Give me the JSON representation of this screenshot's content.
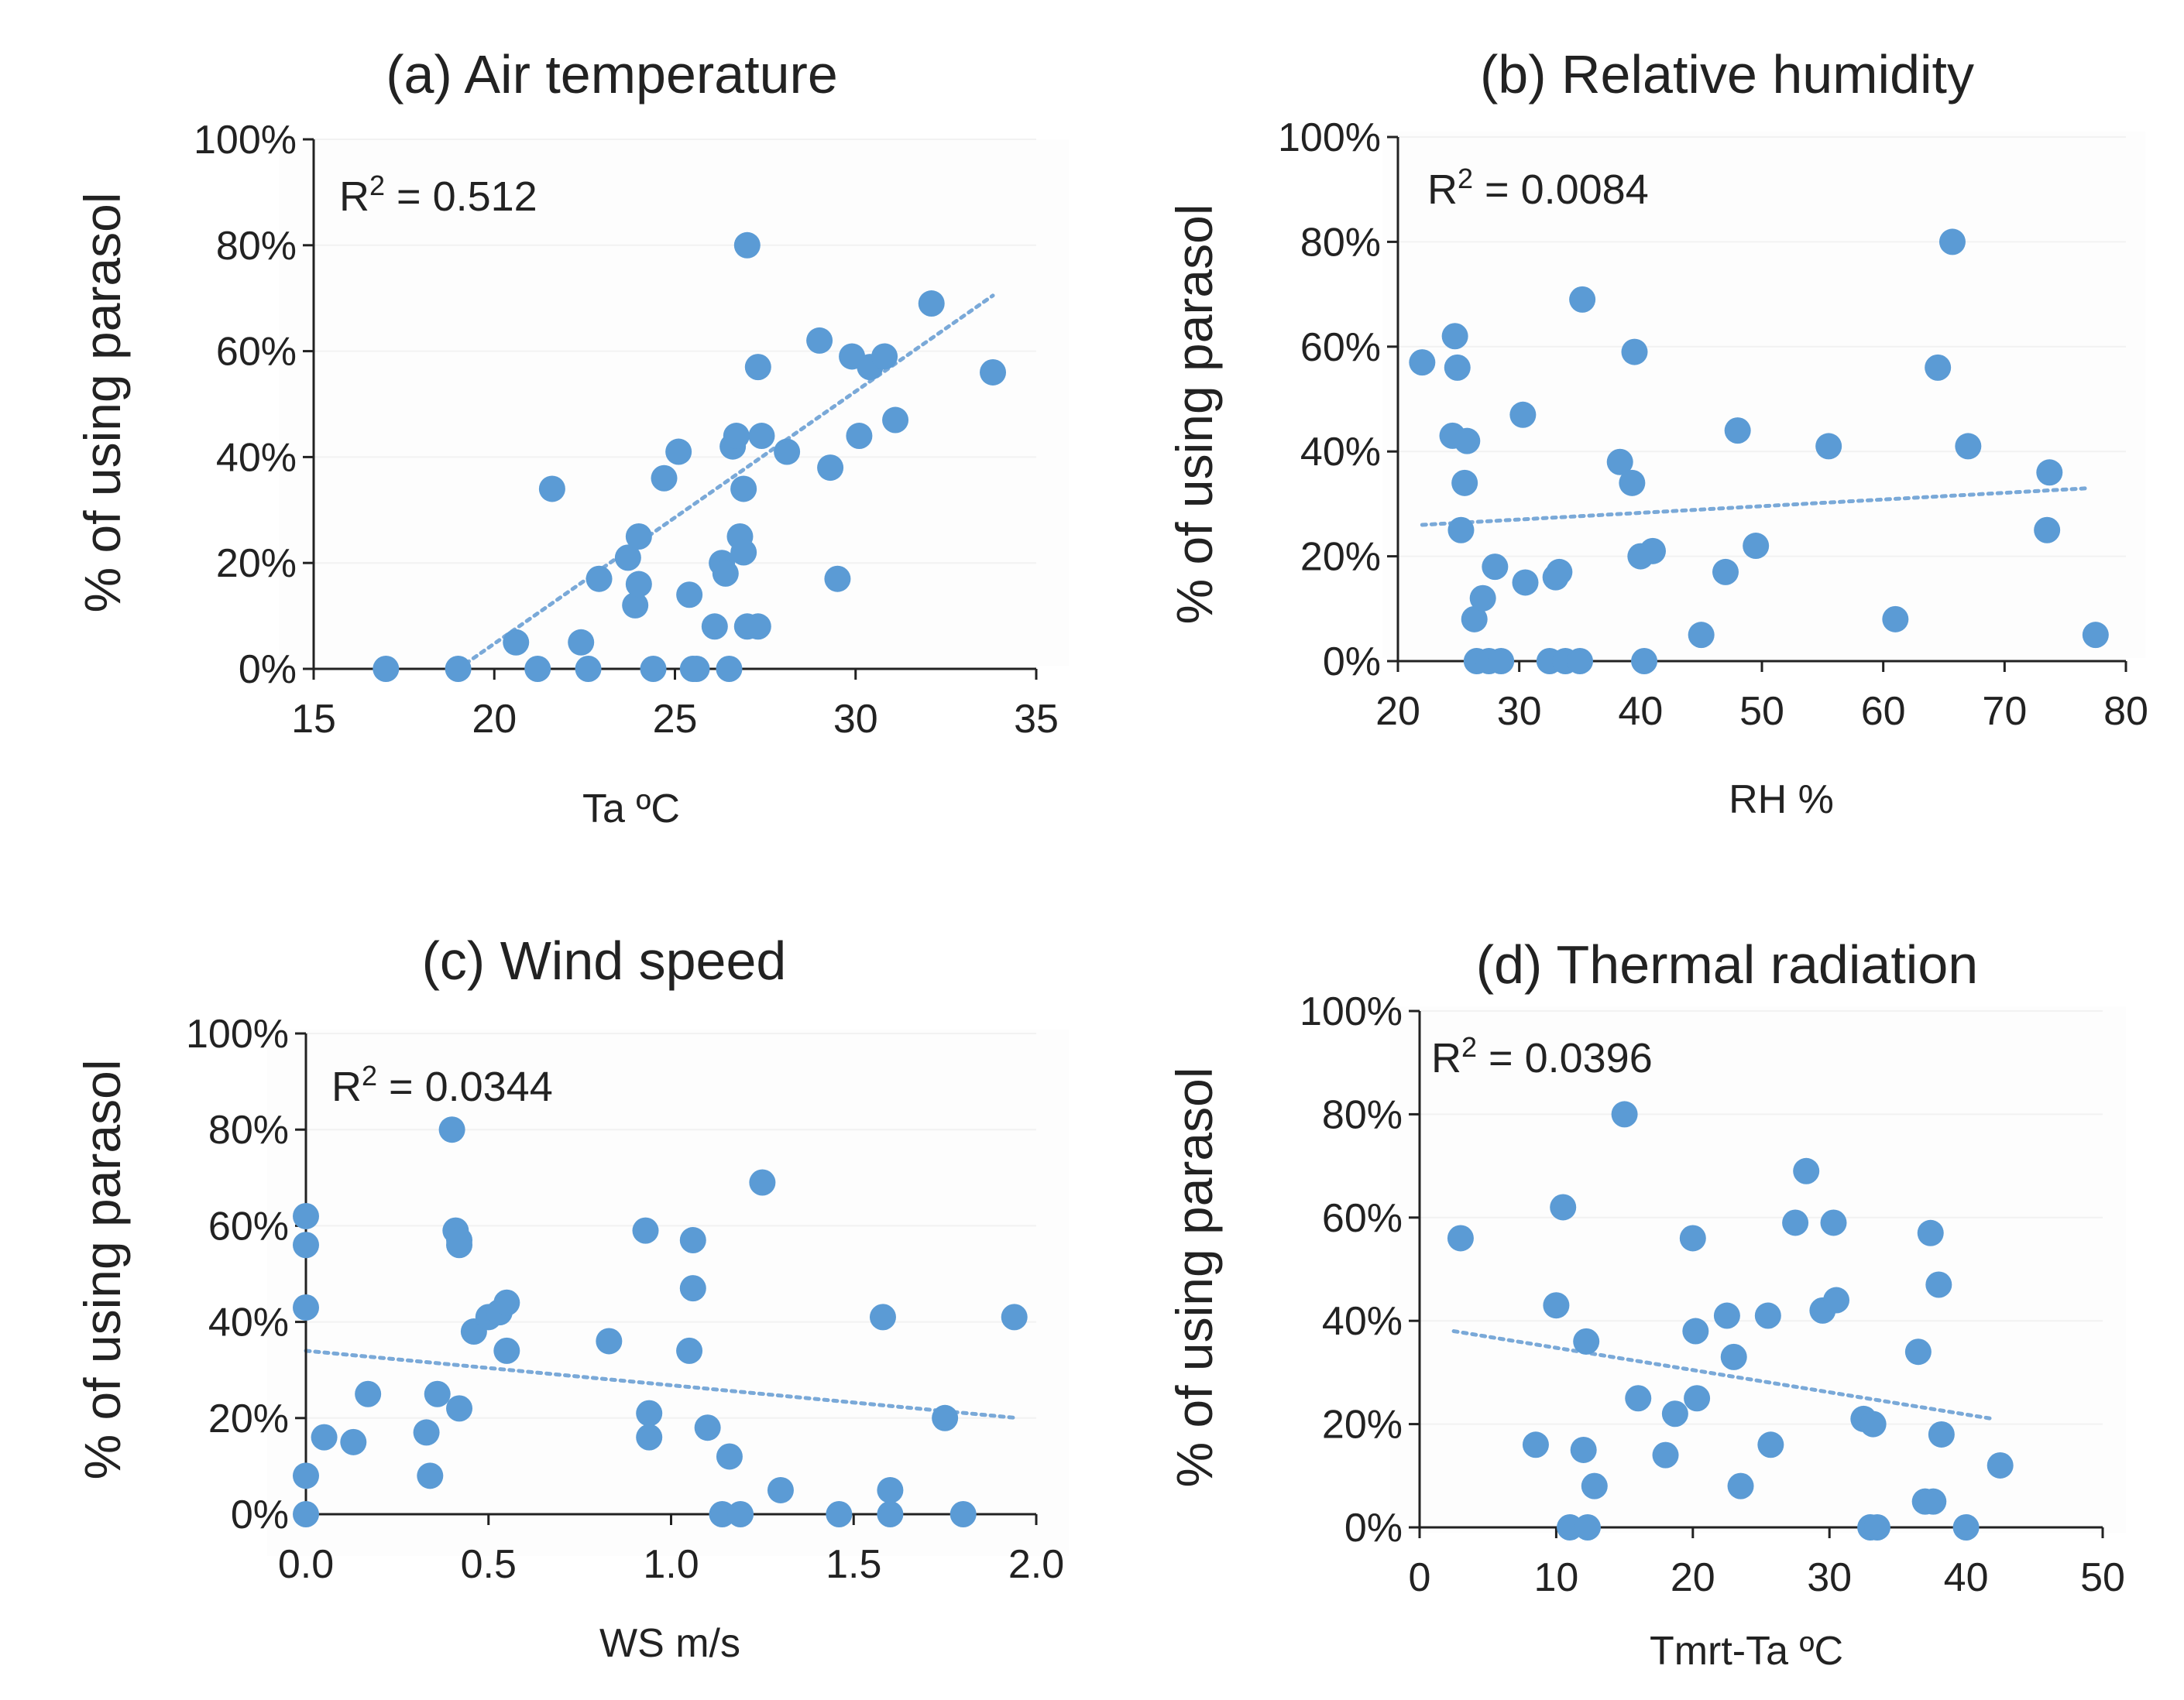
{
  "colors": {
    "point": "#5b9bd5",
    "trendline": "#7aa9d8",
    "axis": "#222222",
    "grid": "#f2f2f2"
  },
  "chart_data": [
    {
      "id": "a",
      "type": "scatter",
      "title": "(a) Air temperature",
      "xlabel": "Ta ºC",
      "ylabel": "% of using parasol",
      "xlim": [
        15,
        35
      ],
      "xticks": [
        "15",
        "20",
        "25",
        "30",
        "35"
      ],
      "ylim": [
        0,
        100
      ],
      "yticks": [
        "0%",
        "20%",
        "40%",
        "60%",
        "80%",
        "100%"
      ],
      "r2_prefix": "R",
      "r2_exp": "2",
      "r2_value": " = 0.512",
      "trendline": {
        "x": [
          19,
          33.8
        ],
        "y": [
          0,
          70.5
        ]
      },
      "points": {
        "x": [
          17,
          19,
          20.6,
          21.2,
          21.6,
          22.4,
          22.6,
          22.9,
          23.7,
          23.9,
          24,
          24,
          24.4,
          24.7,
          25.1,
          25.4,
          25.5,
          25.6,
          26.1,
          26.3,
          26.4,
          26.5,
          26.6,
          26.7,
          26.8,
          26.9,
          26.9,
          27,
          27,
          27.3,
          27.3,
          27.4,
          28.1,
          29,
          29.3,
          29.5,
          29.9,
          30.1,
          30.4,
          30.8,
          31.1,
          32.1,
          33.8
        ],
        "y": [
          0,
          0,
          5,
          0,
          34,
          5,
          0,
          17,
          21,
          12,
          25,
          16,
          0,
          36,
          41,
          14,
          0,
          0,
          8,
          20,
          18,
          0,
          42,
          44,
          25,
          22,
          34,
          8,
          80,
          57,
          8,
          44,
          41,
          62,
          38,
          17,
          59,
          44,
          57,
          59,
          47,
          69,
          56
        ]
      }
    },
    {
      "id": "b",
      "type": "scatter",
      "title": "(b) Relative humidity",
      "xlabel": "RH %",
      "ylabel": "% of using parasol",
      "xlim": [
        20,
        80
      ],
      "xticks": [
        "20",
        "30",
        "40",
        "50",
        "60",
        "70",
        "80"
      ],
      "ylim": [
        0,
        100
      ],
      "yticks": [
        "0%",
        "20%",
        "40%",
        "60%",
        "80%",
        "100%"
      ],
      "r2_prefix": "R",
      "r2_exp": "2",
      "r2_value": " = 0.0084",
      "trendline": {
        "x": [
          22,
          77
        ],
        "y": [
          26,
          33
        ]
      },
      "points": {
        "x": [
          22,
          24.5,
          24.7,
          24.9,
          25.2,
          25.5,
          25.7,
          26.3,
          26.5,
          27,
          27.5,
          28,
          28.5,
          30.3,
          30.5,
          32.5,
          33,
          33.3,
          33.8,
          35,
          35.2,
          38.3,
          39.3,
          39.5,
          40,
          40.3,
          41,
          45,
          47,
          48,
          49.5,
          55.5,
          61,
          64.5,
          65.7,
          67,
          73.5,
          73.7,
          77.5
        ],
        "y": [
          57,
          43,
          62,
          56,
          25,
          34,
          42,
          8,
          0,
          12,
          0,
          18,
          0,
          47,
          15,
          0,
          16,
          17,
          0,
          0,
          69,
          38,
          34,
          59,
          20,
          0,
          21,
          5,
          17,
          44,
          22,
          41,
          8,
          56,
          80,
          41,
          25,
          36,
          5
        ]
      }
    },
    {
      "id": "c",
      "type": "scatter",
      "title": "(c) Wind speed",
      "xlabel": "WS m/s",
      "ylabel": "% of using parasol",
      "xlim": [
        0,
        2
      ],
      "xticks": [
        "0.0",
        "0.5",
        "1.0",
        "1.5",
        "2.0"
      ],
      "ylim": [
        0,
        100
      ],
      "yticks": [
        "0%",
        "20%",
        "40%",
        "60%",
        "80%",
        "100%"
      ],
      "r2_prefix": "R",
      "r2_exp": "2",
      "r2_value": " = 0.0344",
      "trendline": {
        "x": [
          0,
          1.95
        ],
        "y": [
          34,
          20
        ]
      },
      "points": {
        "x": [
          0,
          0,
          0,
          0,
          0,
          0.05,
          0.13,
          0.17,
          0.33,
          0.34,
          0.36,
          0.4,
          0.41,
          0.42,
          0.42,
          0.42,
          0.46,
          0.5,
          0.53,
          0.55,
          0.55,
          0.83,
          0.93,
          0.94,
          0.94,
          1.05,
          1.06,
          1.06,
          1.1,
          1.14,
          1.16,
          1.19,
          1.25,
          1.3,
          1.46,
          1.58,
          1.6,
          1.6,
          1.75,
          1.8,
          1.94
        ],
        "y": [
          62,
          56,
          43,
          8,
          0,
          16,
          15,
          25,
          17,
          8,
          25,
          80,
          59,
          56,
          57,
          22,
          38,
          41,
          42,
          44,
          34,
          36,
          59,
          21,
          16,
          34,
          57,
          47,
          18,
          0,
          12,
          0,
          69,
          5,
          0,
          41,
          5,
          0,
          20,
          0,
          41
        ]
      }
    },
    {
      "id": "d",
      "type": "scatter",
      "title": "(d) Thermal radiation",
      "xlabel": "Tmrt-Ta ºC",
      "ylabel": "% of using parasol",
      "xlim": [
        0,
        50
      ],
      "xticks": [
        "0",
        "10",
        "20",
        "30",
        "40",
        "50"
      ],
      "ylim": [
        0,
        100
      ],
      "yticks": [
        "0%",
        "20%",
        "40%",
        "60%",
        "80%",
        "100%"
      ],
      "r2_prefix": "R",
      "r2_exp": "2",
      "r2_value": " = 0.0396",
      "trendline": {
        "x": [
          2.5,
          42
        ],
        "y": [
          38,
          21
        ]
      },
      "points": {
        "x": [
          3,
          8.5,
          10,
          10.5,
          11,
          12,
          12.2,
          12.3,
          12.8,
          15,
          16,
          18,
          18.7,
          20,
          20.2,
          20.3,
          22.5,
          23,
          23.5,
          25.5,
          25.7,
          27.5,
          28.3,
          29.5,
          30.3,
          30.5,
          32.5,
          33,
          33.2,
          33.5,
          36.5,
          37,
          37.4,
          37.6,
          38,
          38.2,
          40,
          42.5
        ],
        "y": [
          56,
          16,
          43,
          62,
          0,
          15,
          36,
          0,
          8,
          80,
          25,
          14,
          22,
          56,
          38,
          25,
          41,
          33,
          8,
          41,
          16,
          59,
          69,
          42,
          59,
          44,
          21,
          0,
          20,
          0,
          34,
          5,
          57,
          5,
          47,
          18,
          0,
          12
        ]
      }
    }
  ]
}
